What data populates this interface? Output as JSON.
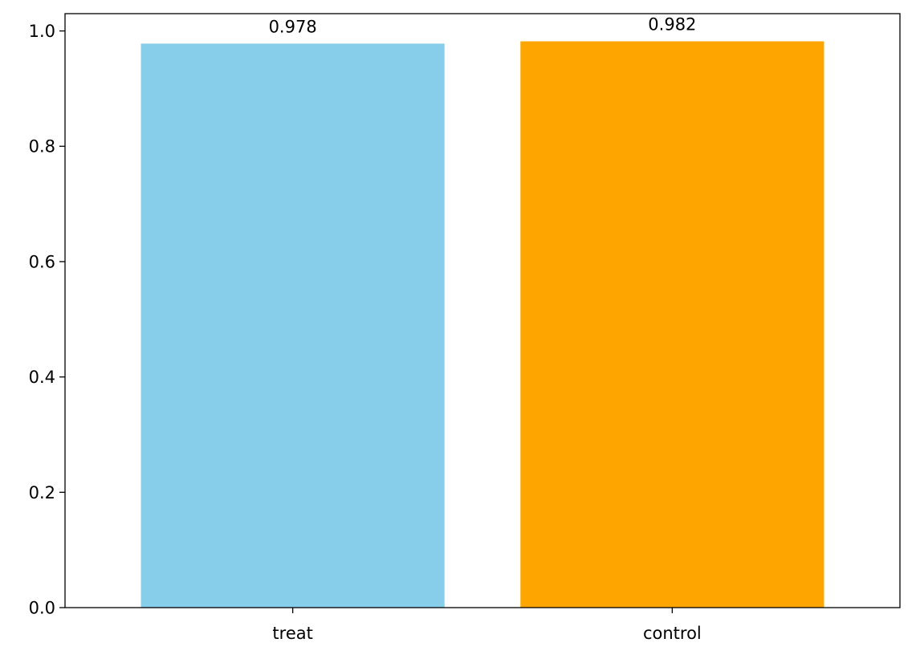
{
  "chart_data": {
    "type": "bar",
    "categories": [
      "treat",
      "control"
    ],
    "values": [
      0.978,
      0.982
    ],
    "data_labels": [
      "0.978",
      "0.982"
    ],
    "colors": [
      "#87CEEB",
      "#FFA500"
    ],
    "title": "",
    "xlabel": "",
    "ylabel": "",
    "ylim": [
      0,
      1.03
    ],
    "yticks": [
      0.0,
      0.2,
      0.4,
      0.6,
      0.8,
      1.0
    ],
    "ytick_labels": [
      "0.0",
      "0.2",
      "0.4",
      "0.6",
      "0.8",
      "1.0"
    ],
    "grid": false,
    "legend": "none"
  }
}
